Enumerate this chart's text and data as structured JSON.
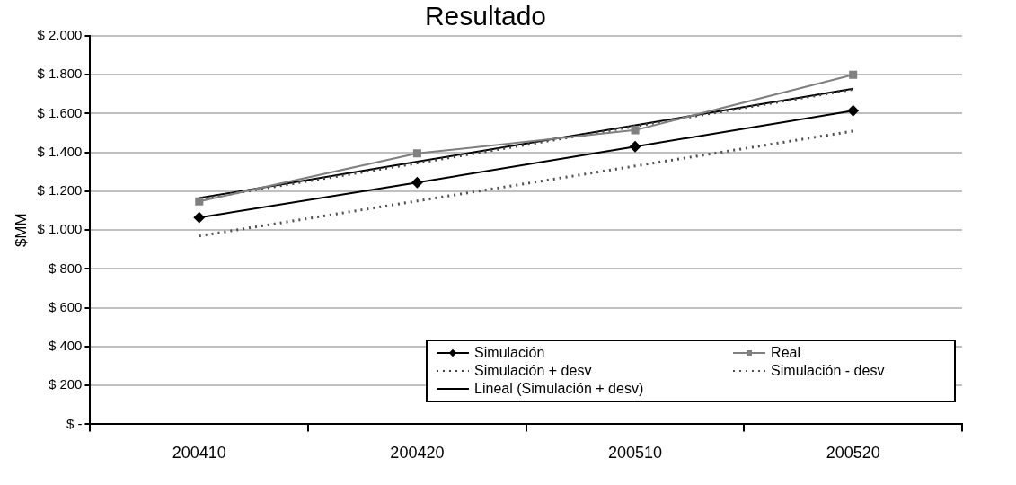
{
  "chart_data": {
    "type": "line",
    "title": "Resultado",
    "ylabel": "$MM",
    "categories": [
      "200410",
      "200420",
      "200510",
      "200520"
    ],
    "series": [
      {
        "name": "Simulación",
        "color": "#000000",
        "marker": "diamond",
        "line_style": "solid",
        "values": [
          1065,
          1245,
          1430,
          1615
        ]
      },
      {
        "name": "Real",
        "color": "#808080",
        "marker": "square",
        "line_style": "solid",
        "values": [
          1148,
          1395,
          1515,
          1800
        ]
      },
      {
        "name": "Simulación + desv",
        "color": "#404040",
        "marker": "none",
        "line_style": "dotted",
        "values": [
          1160,
          1345,
          1535,
          1725
        ]
      },
      {
        "name": "Simulación - desv",
        "color": "#505050",
        "marker": "none",
        "line_style": "dotted",
        "values": [
          970,
          1150,
          1330,
          1510
        ]
      },
      {
        "name": "Lineal (Simulación + desv)",
        "color": "#000000",
        "marker": "none",
        "line_style": "solid",
        "values": [
          1165,
          1352,
          1540,
          1728
        ]
      }
    ],
    "ylim": [
      0,
      2000
    ],
    "yticks": [
      {
        "value": 0,
        "label": "$ -"
      },
      {
        "value": 200,
        "label": "$ 200"
      },
      {
        "value": 400,
        "label": "$ 400"
      },
      {
        "value": 600,
        "label": "$ 600"
      },
      {
        "value": 800,
        "label": "$ 800"
      },
      {
        "value": 1000,
        "label": "$ 1.000"
      },
      {
        "value": 1200,
        "label": "$ 1.200"
      },
      {
        "value": 1400,
        "label": "$ 1.400"
      },
      {
        "value": 1600,
        "label": "$ 1.600"
      },
      {
        "value": 1800,
        "label": "$ 1.800"
      },
      {
        "value": 2000,
        "label": "$ 2.000"
      }
    ],
    "grid": "y",
    "legend": "bottom"
  }
}
